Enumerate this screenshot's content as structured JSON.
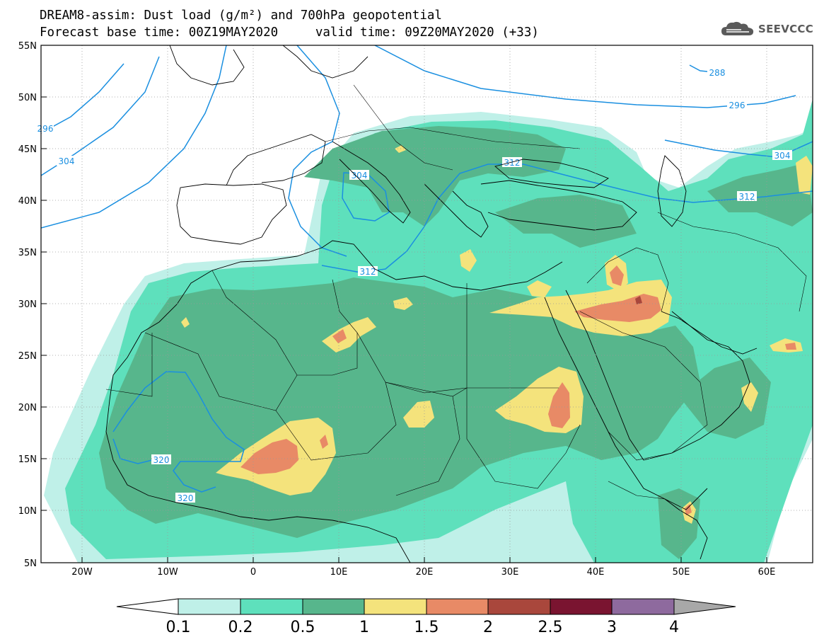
{
  "title": {
    "line1": "DREAM8-assim: Dust load (g/m²) and 700hPa geopotential",
    "line2": "Forecast base time: 00Z19MAY2020     valid time: 09Z20MAY2020 (+33)"
  },
  "logo": {
    "text": "SEEVCCC",
    "icon": "cloud-icon"
  },
  "axes": {
    "lat_labels": [
      "55N",
      "50N",
      "45N",
      "40N",
      "35N",
      "30N",
      "25N",
      "20N",
      "15N",
      "10N",
      "5N"
    ],
    "lon_labels": [
      "20W",
      "10W",
      "0",
      "10E",
      "20E",
      "30E",
      "40E",
      "50E",
      "60E"
    ],
    "lat_range": [
      5,
      55
    ],
    "lon_range": [
      -25,
      65
    ],
    "grid": "dotted"
  },
  "colorbar": {
    "labels": [
      "0.1",
      "0.2",
      "0.5",
      "1",
      "1.5",
      "2",
      "2.5",
      "3",
      "4"
    ],
    "colors": [
      "#ffffff",
      "#bff0e8",
      "#5ee0bc",
      "#57b68c",
      "#f4e37c",
      "#e88a66",
      "#a9473c",
      "#7a1430",
      "#8e6a9e",
      "#a8a8a8"
    ]
  },
  "contours": {
    "color": "#1a8fe0",
    "labels": [
      {
        "text": "288",
        "lon": 50,
        "lat": 51.8
      },
      {
        "text": "296",
        "lon": 53,
        "lat": 49.2
      },
      {
        "text": "296",
        "lon": -25,
        "lat": 46.8
      },
      {
        "text": "304",
        "lon": -22,
        "lat": 44.2
      },
      {
        "text": "304",
        "lon": 10.5,
        "lat": 41.8
      },
      {
        "text": "304",
        "lon": 60.5,
        "lat": 45.5
      },
      {
        "text": "312",
        "lon": 29.5,
        "lat": 43.7
      },
      {
        "text": "312",
        "lon": 56.5,
        "lat": 41.8
      },
      {
        "text": "312",
        "lon": 12,
        "lat": 34.0
      },
      {
        "text": "320",
        "lon": -8.5,
        "lat": 14.6
      },
      {
        "text": "320",
        "lon": -9,
        "lat": 11.6
      }
    ]
  }
}
